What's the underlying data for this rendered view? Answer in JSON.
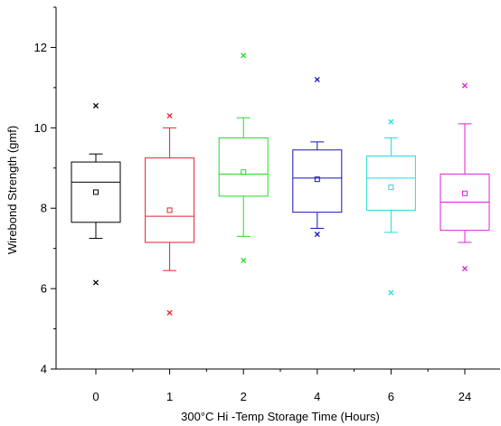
{
  "chart_data": {
    "type": "box",
    "title": "",
    "xlabel": "300°C Hi -Temp Storage Time (Hours)",
    "ylabel": "Wirebond Strength (gmf)",
    "ylim": [
      4,
      13
    ],
    "yticks": [
      4,
      6,
      8,
      10,
      12
    ],
    "grid": false,
    "categories": [
      "0",
      "1",
      "2",
      "4",
      "6",
      "24"
    ],
    "series": [
      {
        "category": "0",
        "color": "#000000",
        "whisker_low": 7.25,
        "q1": 7.65,
        "median": 8.65,
        "q3": 9.15,
        "whisker_high": 9.35,
        "mean": 8.4,
        "outlier_low": 6.15,
        "outlier_high": 10.55
      },
      {
        "category": "1",
        "color": "#e8202a",
        "whisker_low": 6.45,
        "q1": 7.15,
        "median": 7.8,
        "q3": 9.25,
        "whisker_high": 10.0,
        "mean": 7.95,
        "outlier_low": 5.4,
        "outlier_high": 10.3
      },
      {
        "category": "2",
        "color": "#22dd22",
        "whisker_low": 7.3,
        "q1": 8.3,
        "median": 8.85,
        "q3": 9.75,
        "whisker_high": 10.25,
        "mean": 8.9,
        "outlier_low": 6.7,
        "outlier_high": 11.8
      },
      {
        "category": "4",
        "color": "#1515b8",
        "whisker_low": 7.5,
        "q1": 7.9,
        "median": 8.75,
        "q3": 9.45,
        "whisker_high": 9.65,
        "mean": 8.72,
        "outlier_low": 7.35,
        "outlier_high": 11.2
      },
      {
        "category": "6",
        "color": "#22dddd",
        "whisker_low": 7.4,
        "q1": 7.95,
        "median": 8.75,
        "q3": 9.3,
        "whisker_high": 9.75,
        "mean": 8.52,
        "outlier_low": 5.9,
        "outlier_high": 10.15
      },
      {
        "category": "24",
        "color": "#dd22dd",
        "whisker_low": 7.15,
        "q1": 7.45,
        "median": 8.15,
        "q3": 8.85,
        "whisker_high": 10.1,
        "mean": 8.37,
        "outlier_low": 6.5,
        "outlier_high": 11.05
      }
    ]
  }
}
